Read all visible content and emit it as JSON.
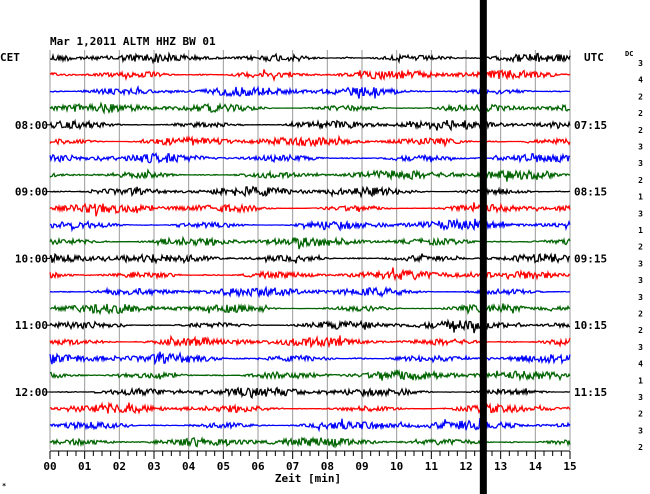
{
  "header": "Mar 1,2011   ALTM HHZ BW 01",
  "left_label": "CET",
  "right_label": "UTC",
  "dc_label": "DC",
  "footnote": "*",
  "chart_data": {
    "type": "line",
    "title": "Mar 1,2011   ALTM HHZ BW 01",
    "xlabel": "Zeit [min]",
    "ylabel": "",
    "xlim": [
      0,
      15
    ],
    "x_ticks": [
      "00",
      "01",
      "02",
      "03",
      "04",
      "05",
      "06",
      "07",
      "08",
      "09",
      "10",
      "11",
      "12",
      "13",
      "14",
      "15"
    ],
    "y_ticks_left": [
      "08:00",
      "09:00",
      "10:00",
      "11:00",
      "12:00"
    ],
    "y_ticks_right": [
      "07:15",
      "08:15",
      "09:15",
      "10:15",
      "11:15"
    ],
    "trace_colors": [
      "#000000",
      "#ff0000",
      "#0000ff",
      "#006400"
    ],
    "trace_count": 24,
    "dc_values": [
      "3",
      "4",
      "2",
      "2",
      "2",
      "3",
      "3",
      "2",
      "1",
      "3",
      "1",
      "2",
      "3",
      "3",
      "3",
      "2",
      "2",
      "3",
      "4",
      "1",
      "3",
      "2",
      "3",
      "2"
    ],
    "marker_minute": 12.5,
    "grid": true
  }
}
